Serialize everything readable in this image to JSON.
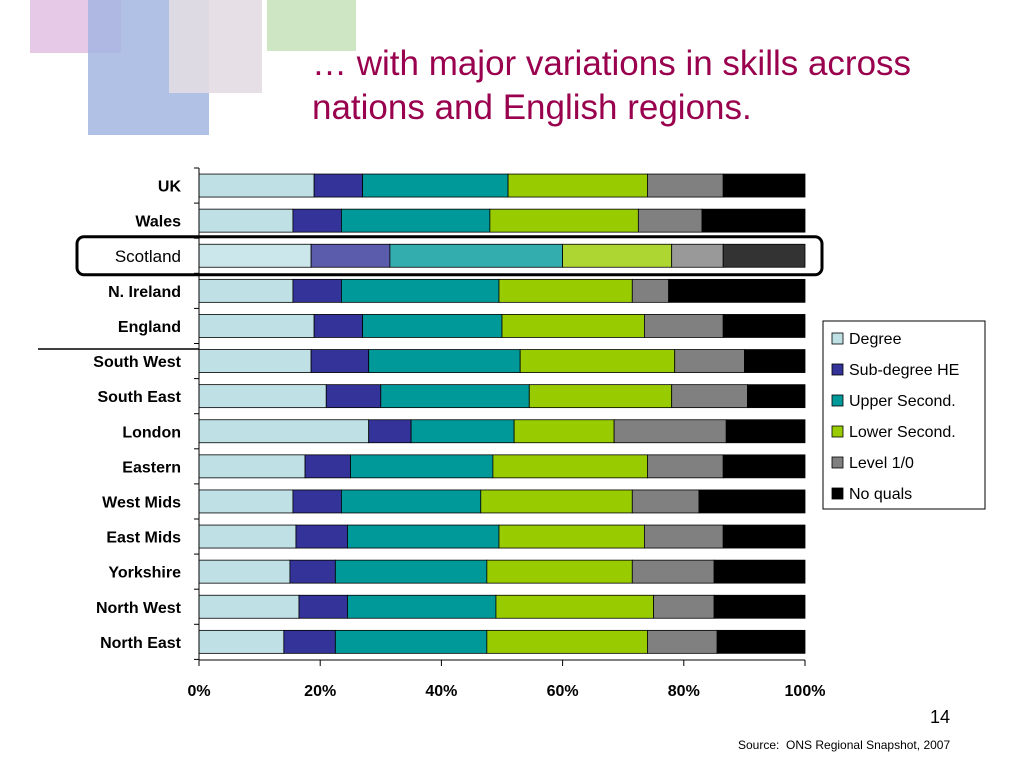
{
  "slide": {
    "title": "… with major variations in skills across nations and English regions.",
    "page_number": "14",
    "source": "Source:  ONS Regional Snapshot, 2007"
  },
  "colors": {
    "title": "#99004d",
    "decor_pink": "#e6c9e6",
    "decor_blue": "#a3b5e0",
    "decor_grey": "#e3dde3",
    "decor_green": "#cfe6c5",
    "highlight_box": "#000000"
  },
  "chart_data": {
    "type": "bar",
    "orientation": "horizontal",
    "stacked": "percent",
    "categories": [
      "UK",
      "Wales",
      "Scotland",
      "N. Ireland",
      "England",
      "South West",
      "South East",
      "London",
      "Eastern",
      "West Mids",
      "East Mids",
      "Yorkshire",
      "North West",
      "North East"
    ],
    "highlighted_category": "Scotland",
    "xlim": [
      0,
      100
    ],
    "x_ticks": [
      "0%",
      "20%",
      "40%",
      "60%",
      "80%",
      "100%"
    ],
    "x_tick_values": [
      0,
      20,
      40,
      60,
      80,
      100
    ],
    "legend_position": "right",
    "series": [
      {
        "name": "Degree",
        "color": "#bfe1e6",
        "values": [
          19,
          15.5,
          18.5,
          15.5,
          19,
          18.5,
          21,
          28,
          17.5,
          15.5,
          16,
          15,
          16.5,
          14
        ]
      },
      {
        "name": "Sub-degree HE",
        "color": "#333399",
        "values": [
          8,
          8,
          13,
          8,
          8,
          9.5,
          9,
          7,
          7.5,
          8,
          8.5,
          7.5,
          8,
          8.5
        ]
      },
      {
        "name": "Upper Second.",
        "color": "#009999",
        "values": [
          24,
          24.5,
          28.5,
          26,
          23,
          25,
          24.5,
          17,
          23.5,
          23,
          25,
          25,
          24.5,
          25
        ]
      },
      {
        "name": "Lower Second.",
        "color": "#99cc00",
        "values": [
          23,
          24.5,
          18,
          22,
          23.5,
          25.5,
          23.5,
          16.5,
          25.5,
          25,
          24,
          24,
          26,
          26.5
        ]
      },
      {
        "name": "Level 1/0",
        "color": "#808080",
        "values": [
          12.5,
          10.5,
          8.5,
          6,
          13,
          11.5,
          12.5,
          18.5,
          12.5,
          11,
          13,
          13.5,
          10,
          11.5
        ]
      },
      {
        "name": "No quals",
        "color": "#000000",
        "values": [
          13.5,
          17,
          13.5,
          22.5,
          13.5,
          10,
          9.5,
          13,
          13.5,
          17.5,
          13.5,
          15,
          15,
          14.5
        ]
      }
    ]
  }
}
